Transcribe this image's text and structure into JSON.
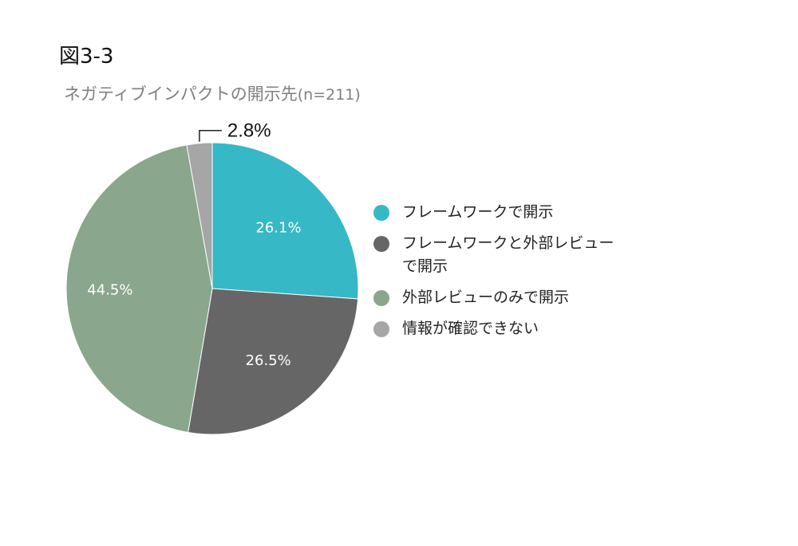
{
  "figure_label": "図3-3",
  "subtitle": {
    "text": "ネガティブインパクトの開示先",
    "sample": "(n=211)"
  },
  "chart_data": {
    "type": "pie",
    "title": "ネガティブインパクトの開示先",
    "sample_size": "(n=211)",
    "start": "12 o'clock",
    "direction": "clockwise",
    "legend_position": "right",
    "slices": [
      {
        "name": "フレームワークで開示",
        "value": 26.1,
        "label": "26.1%",
        "color": "#36b8c6"
      },
      {
        "name": "フレームワークと外部レビュー\nで開示",
        "value": 26.5,
        "label": "26.5%",
        "color": "#666666"
      },
      {
        "name": "外部レビューのみで開示",
        "value": 44.5,
        "label": "44.5%",
        "color": "#8aa68c"
      },
      {
        "name": "情報が確認できない",
        "value": 2.8,
        "label": "2.8%",
        "color": "#a6a6a6"
      }
    ]
  }
}
